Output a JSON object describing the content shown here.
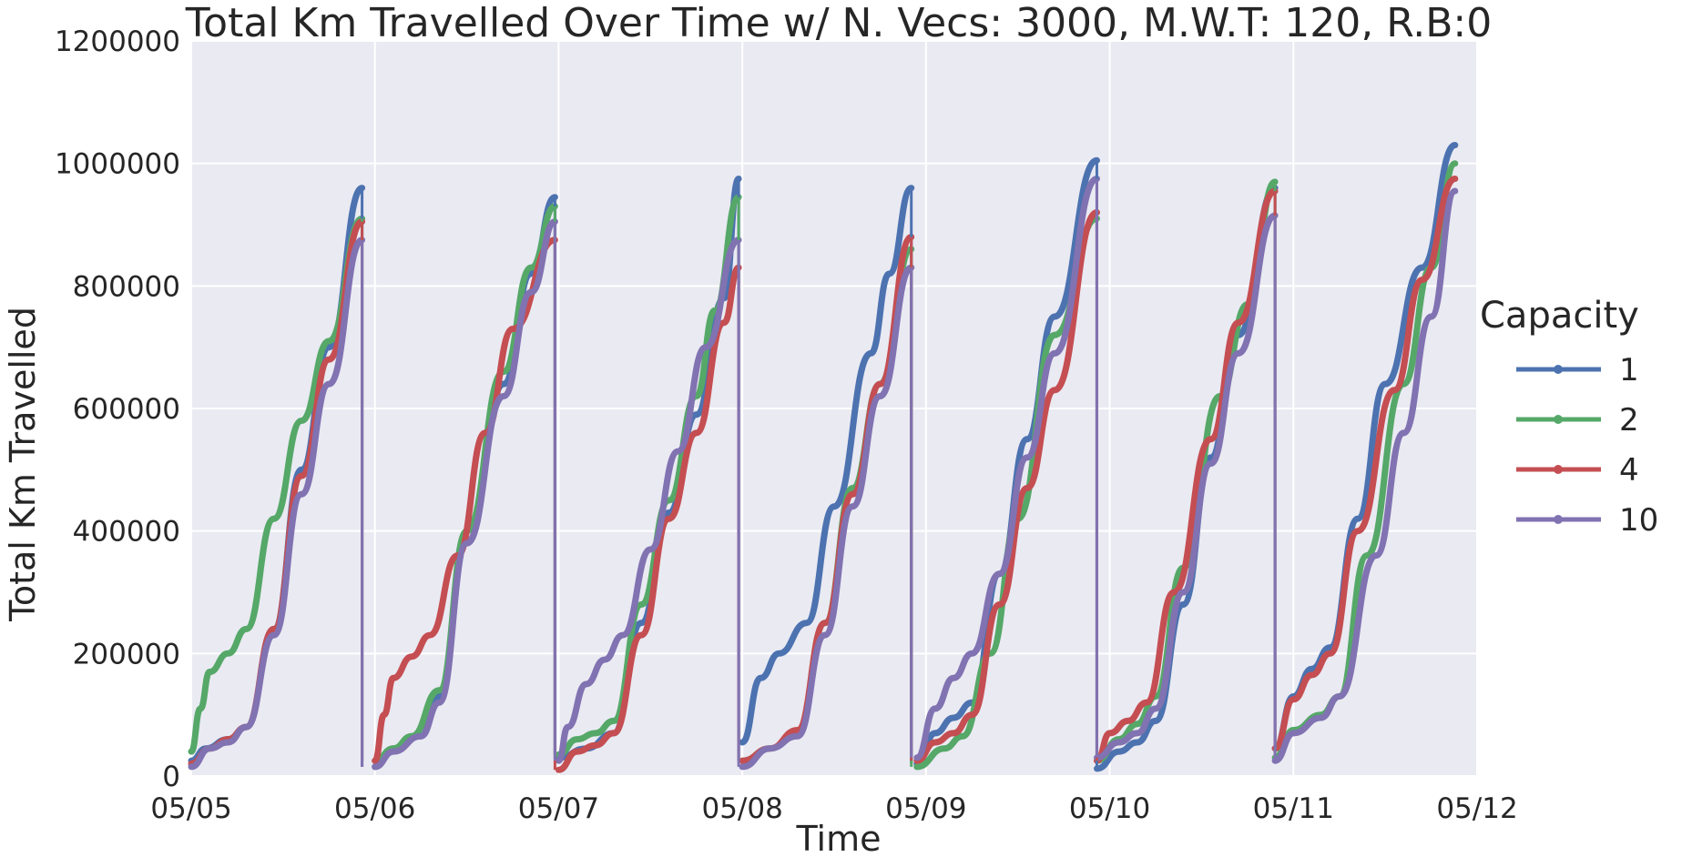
{
  "chart_data": {
    "type": "line",
    "title": "Total Km Travelled Over Time w/ N. Vecs: 3000, M.W.T: 120, R.B:0",
    "xlabel": "Time",
    "ylabel": "Total Km Travelled",
    "x_ticks": [
      "05/05",
      "05/06",
      "05/07",
      "05/08",
      "05/09",
      "05/10",
      "05/11",
      "05/12"
    ],
    "y_ticks": [
      "0",
      "200000",
      "400000",
      "600000",
      "800000",
      "1000000",
      "1200000"
    ],
    "xlim": [
      0,
      7
    ],
    "ylim": [
      0,
      1200000
    ],
    "grid": true,
    "background": "#EAEAF2",
    "legend": {
      "title": "Capacity",
      "placement": "right"
    },
    "series": [
      {
        "name": "1",
        "color": "#4C72B0",
        "points": [
          [
            0,
            25000
          ],
          [
            0.08,
            45000
          ],
          [
            0.2,
            60000
          ],
          [
            0.3,
            80000
          ],
          [
            0.45,
            240000
          ],
          [
            0.6,
            500000
          ],
          [
            0.75,
            700000
          ],
          [
            0.93,
            960000
          ],
          [
            1.0,
            15000
          ],
          [
            1.1,
            45000
          ],
          [
            1.25,
            65000
          ],
          [
            1.35,
            130000
          ],
          [
            1.5,
            380000
          ],
          [
            1.7,
            640000
          ],
          [
            1.85,
            820000
          ],
          [
            1.98,
            945000
          ],
          [
            2.0,
            30000
          ],
          [
            2.15,
            45000
          ],
          [
            2.3,
            70000
          ],
          [
            2.45,
            250000
          ],
          [
            2.6,
            430000
          ],
          [
            2.75,
            590000
          ],
          [
            2.9,
            780000
          ],
          [
            2.98,
            975000
          ],
          [
            3.0,
            55000
          ],
          [
            3.1,
            160000
          ],
          [
            3.2,
            200000
          ],
          [
            3.35,
            250000
          ],
          [
            3.5,
            440000
          ],
          [
            3.7,
            690000
          ],
          [
            3.8,
            820000
          ],
          [
            3.92,
            960000
          ],
          [
            3.95,
            20000
          ],
          [
            4.05,
            70000
          ],
          [
            4.15,
            95000
          ],
          [
            4.25,
            120000
          ],
          [
            4.4,
            330000
          ],
          [
            4.55,
            550000
          ],
          [
            4.7,
            750000
          ],
          [
            4.93,
            1005000
          ],
          [
            4.93,
            12000
          ],
          [
            5.05,
            40000
          ],
          [
            5.15,
            55000
          ],
          [
            5.25,
            90000
          ],
          [
            5.4,
            280000
          ],
          [
            5.55,
            520000
          ],
          [
            5.7,
            720000
          ],
          [
            5.9,
            960000
          ],
          [
            5.9,
            45000
          ],
          [
            6.0,
            130000
          ],
          [
            6.1,
            175000
          ],
          [
            6.2,
            210000
          ],
          [
            6.35,
            420000
          ],
          [
            6.5,
            640000
          ],
          [
            6.7,
            830000
          ],
          [
            6.88,
            1030000
          ]
        ]
      },
      {
        "name": "2",
        "color": "#55A868",
        "points": [
          [
            0,
            40000
          ],
          [
            0.05,
            110000
          ],
          [
            0.1,
            170000
          ],
          [
            0.2,
            200000
          ],
          [
            0.3,
            240000
          ],
          [
            0.45,
            420000
          ],
          [
            0.6,
            580000
          ],
          [
            0.75,
            710000
          ],
          [
            0.93,
            910000
          ],
          [
            1.0,
            25000
          ],
          [
            1.1,
            45000
          ],
          [
            1.2,
            65000
          ],
          [
            1.35,
            140000
          ],
          [
            1.5,
            400000
          ],
          [
            1.7,
            660000
          ],
          [
            1.85,
            830000
          ],
          [
            1.98,
            930000
          ],
          [
            2.0,
            35000
          ],
          [
            2.1,
            60000
          ],
          [
            2.2,
            70000
          ],
          [
            2.3,
            90000
          ],
          [
            2.45,
            280000
          ],
          [
            2.6,
            450000
          ],
          [
            2.75,
            620000
          ],
          [
            2.85,
            760000
          ],
          [
            2.98,
            945000
          ],
          [
            3.0,
            25000
          ],
          [
            3.15,
            45000
          ],
          [
            3.3,
            70000
          ],
          [
            3.45,
            250000
          ],
          [
            3.6,
            470000
          ],
          [
            3.75,
            640000
          ],
          [
            3.92,
            860000
          ],
          [
            3.95,
            15000
          ],
          [
            4.1,
            45000
          ],
          [
            4.2,
            65000
          ],
          [
            4.35,
            200000
          ],
          [
            4.5,
            420000
          ],
          [
            4.7,
            720000
          ],
          [
            4.93,
            910000
          ],
          [
            4.93,
            25000
          ],
          [
            5.05,
            60000
          ],
          [
            5.15,
            85000
          ],
          [
            5.25,
            130000
          ],
          [
            5.4,
            340000
          ],
          [
            5.6,
            620000
          ],
          [
            5.75,
            770000
          ],
          [
            5.9,
            970000
          ],
          [
            5.9,
            30000
          ],
          [
            6.0,
            75000
          ],
          [
            6.15,
            100000
          ],
          [
            6.25,
            130000
          ],
          [
            6.4,
            360000
          ],
          [
            6.6,
            640000
          ],
          [
            6.75,
            830000
          ],
          [
            6.88,
            1000000
          ]
        ]
      },
      {
        "name": "4",
        "color": "#C44E52",
        "points": [
          [
            0,
            20000
          ],
          [
            0.1,
            45000
          ],
          [
            0.2,
            60000
          ],
          [
            0.3,
            80000
          ],
          [
            0.45,
            240000
          ],
          [
            0.6,
            490000
          ],
          [
            0.75,
            680000
          ],
          [
            0.93,
            905000
          ],
          [
            1.0,
            25000
          ],
          [
            1.05,
            100000
          ],
          [
            1.1,
            160000
          ],
          [
            1.2,
            195000
          ],
          [
            1.3,
            230000
          ],
          [
            1.45,
            360000
          ],
          [
            1.6,
            560000
          ],
          [
            1.75,
            730000
          ],
          [
            1.98,
            875000
          ],
          [
            2.0,
            10000
          ],
          [
            2.1,
            40000
          ],
          [
            2.2,
            50000
          ],
          [
            2.3,
            70000
          ],
          [
            2.45,
            230000
          ],
          [
            2.6,
            420000
          ],
          [
            2.75,
            560000
          ],
          [
            2.9,
            740000
          ],
          [
            2.98,
            830000
          ],
          [
            3.0,
            25000
          ],
          [
            3.15,
            45000
          ],
          [
            3.3,
            75000
          ],
          [
            3.45,
            250000
          ],
          [
            3.6,
            460000
          ],
          [
            3.75,
            640000
          ],
          [
            3.92,
            880000
          ],
          [
            3.95,
            25000
          ],
          [
            4.05,
            55000
          ],
          [
            4.15,
            70000
          ],
          [
            4.25,
            100000
          ],
          [
            4.4,
            280000
          ],
          [
            4.55,
            470000
          ],
          [
            4.7,
            630000
          ],
          [
            4.93,
            920000
          ],
          [
            4.93,
            25000
          ],
          [
            5.0,
            70000
          ],
          [
            5.1,
            90000
          ],
          [
            5.2,
            120000
          ],
          [
            5.35,
            300000
          ],
          [
            5.55,
            550000
          ],
          [
            5.7,
            740000
          ],
          [
            5.9,
            955000
          ],
          [
            5.9,
            45000
          ],
          [
            6.0,
            125000
          ],
          [
            6.1,
            165000
          ],
          [
            6.2,
            200000
          ],
          [
            6.35,
            400000
          ],
          [
            6.55,
            630000
          ],
          [
            6.7,
            810000
          ],
          [
            6.88,
            975000
          ]
        ]
      },
      {
        "name": "10",
        "color": "#8172B2",
        "points": [
          [
            0,
            15000
          ],
          [
            0.1,
            45000
          ],
          [
            0.2,
            55000
          ],
          [
            0.3,
            80000
          ],
          [
            0.45,
            230000
          ],
          [
            0.6,
            460000
          ],
          [
            0.75,
            640000
          ],
          [
            0.93,
            875000
          ],
          [
            1.0,
            15000
          ],
          [
            1.1,
            40000
          ],
          [
            1.25,
            65000
          ],
          [
            1.35,
            120000
          ],
          [
            1.5,
            380000
          ],
          [
            1.7,
            620000
          ],
          [
            1.85,
            790000
          ],
          [
            1.98,
            905000
          ],
          [
            2.0,
            25000
          ],
          [
            2.05,
            80000
          ],
          [
            2.15,
            150000
          ],
          [
            2.25,
            190000
          ],
          [
            2.35,
            230000
          ],
          [
            2.5,
            370000
          ],
          [
            2.65,
            530000
          ],
          [
            2.8,
            700000
          ],
          [
            2.98,
            875000
          ],
          [
            3.0,
            15000
          ],
          [
            3.15,
            45000
          ],
          [
            3.3,
            65000
          ],
          [
            3.45,
            230000
          ],
          [
            3.6,
            440000
          ],
          [
            3.75,
            620000
          ],
          [
            3.92,
            830000
          ],
          [
            3.95,
            30000
          ],
          [
            4.05,
            110000
          ],
          [
            4.15,
            160000
          ],
          [
            4.25,
            200000
          ],
          [
            4.4,
            330000
          ],
          [
            4.55,
            520000
          ],
          [
            4.7,
            690000
          ],
          [
            4.93,
            975000
          ],
          [
            4.93,
            30000
          ],
          [
            5.05,
            55000
          ],
          [
            5.15,
            70000
          ],
          [
            5.25,
            110000
          ],
          [
            5.4,
            300000
          ],
          [
            5.55,
            510000
          ],
          [
            5.7,
            690000
          ],
          [
            5.9,
            915000
          ],
          [
            5.9,
            25000
          ],
          [
            6.0,
            70000
          ],
          [
            6.15,
            95000
          ],
          [
            6.25,
            130000
          ],
          [
            6.45,
            360000
          ],
          [
            6.6,
            560000
          ],
          [
            6.75,
            750000
          ],
          [
            6.88,
            955000
          ]
        ]
      }
    ]
  }
}
